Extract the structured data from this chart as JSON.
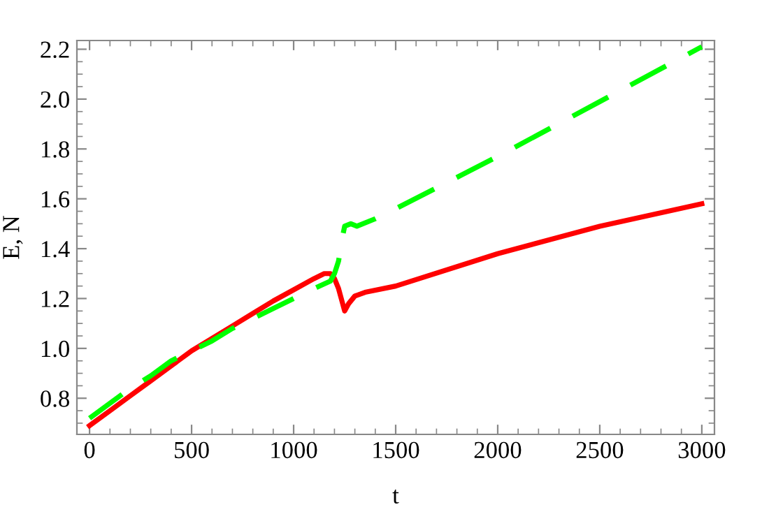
{
  "chart_data": {
    "type": "line",
    "xlabel": "t",
    "ylabel": "E, N",
    "xlim": [
      -62,
      3062
    ],
    "ylim": [
      0.655,
      2.235
    ],
    "xticks": [
      0,
      500,
      1000,
      1500,
      2000,
      2500,
      3000
    ],
    "yticks": [
      {
        "value": 0.8,
        "label": "0.8"
      },
      {
        "value": 1.0,
        "label": "1.0"
      },
      {
        "value": 1.2,
        "label": "1.2"
      },
      {
        "value": 1.4,
        "label": "1.4"
      },
      {
        "value": 1.6,
        "label": "1.6"
      },
      {
        "value": 1.8,
        "label": "1.8"
      },
      {
        "value": 2.0,
        "label": "2.0"
      },
      {
        "value": 2.2,
        "label": "2.2"
      }
    ],
    "grid": false,
    "marker": "none",
    "series": [
      {
        "color": "#ff0000",
        "line_style": "solid",
        "x": [
          0,
          100,
          200,
          300,
          400,
          500,
          600,
          700,
          800,
          900,
          1000,
          1100,
          1150,
          1180,
          1200,
          1220,
          1240,
          1250,
          1270,
          1300,
          1350,
          1500,
          2000,
          2500,
          3000
        ],
        "values": [
          0.69,
          0.75,
          0.81,
          0.87,
          0.93,
          0.99,
          1.04,
          1.09,
          1.14,
          1.19,
          1.235,
          1.28,
          1.3,
          1.3,
          1.28,
          1.24,
          1.18,
          1.15,
          1.18,
          1.21,
          1.225,
          1.25,
          1.38,
          1.49,
          1.58
        ]
      },
      {
        "color": "#00ff00",
        "line_style": "dashed",
        "x": [
          0,
          100,
          200,
          300,
          400,
          500,
          600,
          700,
          800,
          900,
          1000,
          1100,
          1180,
          1200,
          1220,
          1240,
          1250,
          1280,
          1310,
          1400,
          1500,
          2000,
          2500,
          3000
        ],
        "values": [
          0.72,
          0.78,
          0.84,
          0.89,
          0.95,
          0.99,
          1.03,
          1.08,
          1.12,
          1.16,
          1.2,
          1.24,
          1.27,
          1.3,
          1.35,
          1.45,
          1.49,
          1.5,
          1.49,
          1.52,
          1.56,
          1.77,
          1.99,
          2.21
        ]
      }
    ]
  }
}
